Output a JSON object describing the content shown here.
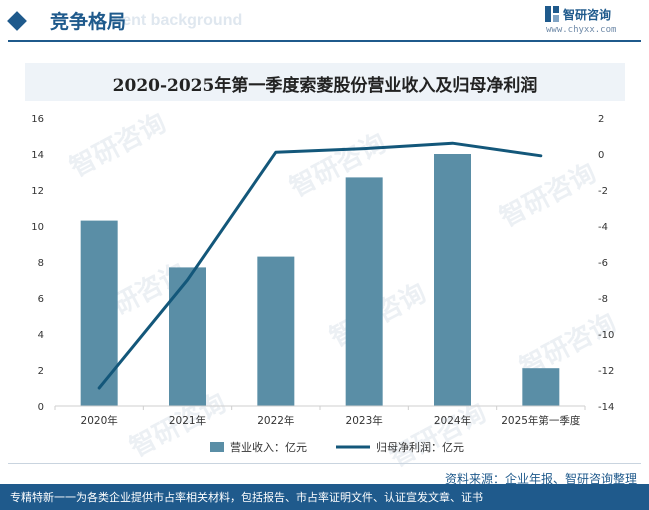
{
  "header": {
    "title": "竞争格局",
    "ghost_text": "ment background",
    "brand_name": "智研咨询",
    "brand_url": "www.chyxx.com"
  },
  "chart_data": {
    "type": "bar",
    "title": "2020-2025年第一季度索菱股份营业收入及归母净利润",
    "categories": [
      "2020年",
      "2021年",
      "2022年",
      "2023年",
      "2024年",
      "2025年第一季度"
    ],
    "series": [
      {
        "name": "营业收入：亿元",
        "type": "bar",
        "axis": "left",
        "color": "#5a8ea6",
        "values": [
          10.3,
          7.7,
          8.3,
          12.7,
          14.0,
          2.1
        ]
      },
      {
        "name": "归母净利润：亿元",
        "type": "line",
        "axis": "right",
        "color": "#13577a",
        "values": [
          -13.0,
          -7.0,
          0.1,
          0.3,
          0.6,
          -0.1
        ]
      }
    ],
    "ylim_left": [
      0,
      16
    ],
    "yticks_left": [
      "0",
      "2",
      "4",
      "6",
      "8",
      "10",
      "12",
      "14",
      "16"
    ],
    "ylim_right": [
      -14,
      2
    ],
    "yticks_right": [
      "-14",
      "-12",
      "-10",
      "-8",
      "-6",
      "-4",
      "-2",
      "0",
      "2"
    ],
    "grid": false,
    "legend_position": "bottom"
  },
  "watermark_text": "智研咨询",
  "footer": {
    "source": "资料来源：企业年报、智研咨询整理",
    "tagline": "专精特新一一为各类企业提供市占率相关材料，包括报告、市占率证明文件、认证宣发文章、证书"
  }
}
